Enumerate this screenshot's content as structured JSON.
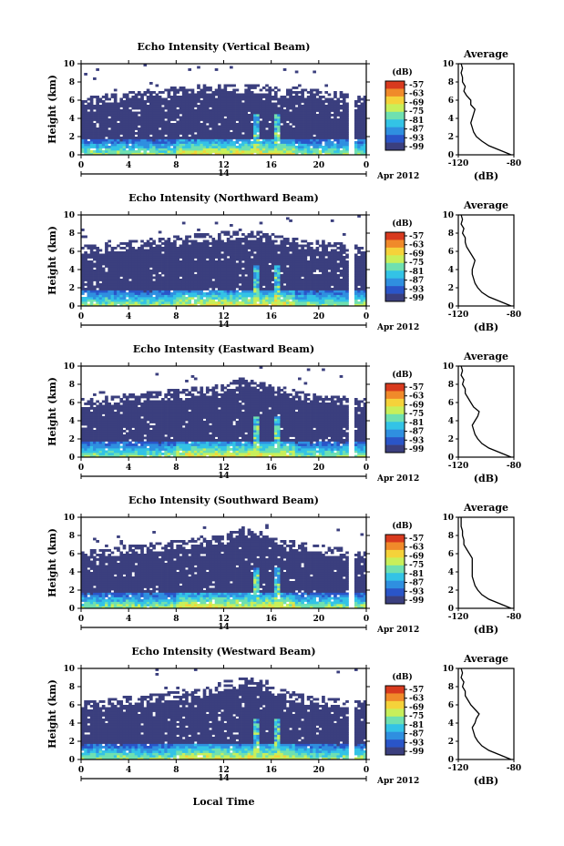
{
  "figure": {
    "xlabel": "Local Time",
    "date_label": "Apr 2012",
    "day_label": "14",
    "colorbar_unit": "(dB)",
    "profile_title": "Average",
    "profile_xlabel": "(dB)"
  },
  "colors": {
    "background_echo": "#3b3f7e",
    "colormap": [
      "#3b3f7e",
      "#2a55c8",
      "#2f8fe0",
      "#33c3e6",
      "#6fe0b0",
      "#c8ef5a",
      "#f5d23a",
      "#f08a2a",
      "#d83a1e"
    ]
  },
  "chart_data": [
    {
      "type": "heatmap",
      "title": "Echo Intensity (Vertical Beam)",
      "ylabel": "Height (km)",
      "xlabel": "Local Time",
      "xlim": [
        0,
        24
      ],
      "ylim": [
        0,
        10
      ],
      "x_ticks": [
        "0",
        "4",
        "8",
        "12",
        "16",
        "20",
        "0"
      ],
      "y_ticks": [
        "0",
        "2",
        "4",
        "6",
        "8",
        "10"
      ],
      "colorbar_ticks": [
        "-57",
        "-63",
        "-69",
        "-75",
        "-81",
        "-87",
        "-93",
        "-99"
      ],
      "echo_top_km": [
        6.0,
        6.2,
        6.4,
        6.6,
        6.8,
        7.0,
        7.2,
        7.4,
        7.5,
        7.4,
        7.3,
        7.2,
        7.0,
        6.8,
        6.6,
        6.4,
        6.0
      ],
      "bright_columns_hour": [
        14.8,
        16.6
      ],
      "profile": {
        "title": "Average",
        "xlabel": "(dB)",
        "xlim": [
          -120,
          -80
        ],
        "ylim": [
          0,
          10
        ],
        "x_ticks": [
          "-120",
          "-80"
        ],
        "y_ticks": [
          "0",
          "2",
          "4",
          "6",
          "8",
          "10"
        ],
        "height_km": [
          0,
          0.5,
          1,
          1.5,
          2,
          2.5,
          3,
          3.5,
          4,
          4.5,
          5,
          5.5,
          6,
          6.5,
          7,
          7.5,
          8,
          8.5,
          9,
          9.5,
          10
        ],
        "db": [
          -82,
          -90,
          -98,
          -103,
          -107,
          -109,
          -110,
          -111,
          -110,
          -109,
          -108,
          -111,
          -111,
          -114,
          -116,
          -115,
          -117,
          -117,
          -118,
          -117,
          -118
        ]
      }
    },
    {
      "type": "heatmap",
      "title": "Echo Intensity (Northward Beam)",
      "ylabel": "Height (km)",
      "xlabel": "Local Time",
      "xlim": [
        0,
        24
      ],
      "ylim": [
        0,
        10
      ],
      "x_ticks": [
        "0",
        "4",
        "8",
        "12",
        "16",
        "20",
        "0"
      ],
      "y_ticks": [
        "0",
        "2",
        "4",
        "6",
        "8",
        "10"
      ],
      "colorbar_ticks": [
        "-57",
        "-63",
        "-69",
        "-75",
        "-81",
        "-87",
        "-93",
        "-99"
      ],
      "echo_top_km": [
        6.2,
        6.4,
        6.6,
        6.8,
        7.0,
        7.2,
        7.4,
        7.6,
        7.8,
        8.0,
        7.8,
        7.4,
        7.0,
        6.8,
        6.6,
        6.4,
        6.0
      ],
      "bright_columns_hour": [
        14.8,
        16.6
      ],
      "profile": {
        "title": "Average",
        "xlabel": "(dB)",
        "xlim": [
          -120,
          -80
        ],
        "ylim": [
          0,
          10
        ],
        "x_ticks": [
          "-120",
          "-80"
        ],
        "y_ticks": [
          "0",
          "2",
          "4",
          "6",
          "8",
          "10"
        ],
        "height_km": [
          0,
          0.5,
          1,
          1.5,
          2,
          2.5,
          3,
          3.5,
          4,
          4.5,
          5,
          5.5,
          6,
          6.5,
          7,
          7.5,
          8,
          8.5,
          9,
          9.5,
          10
        ],
        "db": [
          -82,
          -90,
          -98,
          -103,
          -106,
          -108,
          -109,
          -110,
          -110,
          -109,
          -108,
          -110,
          -112,
          -114,
          -115,
          -115,
          -117,
          -116,
          -118,
          -117,
          -118
        ]
      }
    },
    {
      "type": "heatmap",
      "title": "Echo Intensity (Eastward Beam)",
      "ylabel": "Height (km)",
      "xlabel": "Local Time",
      "xlim": [
        0,
        24
      ],
      "ylim": [
        0,
        10
      ],
      "x_ticks": [
        "0",
        "4",
        "8",
        "12",
        "16",
        "20",
        "0"
      ],
      "y_ticks": [
        "0",
        "2",
        "4",
        "6",
        "8",
        "10"
      ],
      "colorbar_ticks": [
        "-57",
        "-63",
        "-69",
        "-75",
        "-81",
        "-87",
        "-93",
        "-99"
      ],
      "echo_top_km": [
        6.0,
        6.2,
        6.4,
        6.6,
        6.8,
        7.0,
        7.2,
        7.4,
        7.6,
        8.4,
        8.0,
        7.4,
        7.0,
        6.6,
        6.4,
        6.2,
        6.0
      ],
      "bright_columns_hour": [
        14.8,
        16.6
      ],
      "profile": {
        "title": "Average",
        "xlabel": "(dB)",
        "xlim": [
          -120,
          -80
        ],
        "ylim": [
          0,
          10
        ],
        "x_ticks": [
          "-120",
          "-80"
        ],
        "y_ticks": [
          "0",
          "2",
          "4",
          "6",
          "8",
          "10"
        ],
        "height_km": [
          0,
          0.5,
          1,
          1.5,
          2,
          2.5,
          3,
          3.5,
          4,
          4.5,
          5,
          5.5,
          6,
          6.5,
          7,
          7.5,
          8,
          8.5,
          9,
          9.5,
          10
        ],
        "db": [
          -82,
          -90,
          -98,
          -103,
          -106,
          -108,
          -109,
          -110,
          -108,
          -106,
          -105,
          -109,
          -111,
          -113,
          -115,
          -115,
          -117,
          -116,
          -118,
          -117,
          -118
        ]
      }
    },
    {
      "type": "heatmap",
      "title": "Echo Intensity (Southward Beam)",
      "ylabel": "Height (km)",
      "xlabel": "Local Time",
      "xlim": [
        0,
        24
      ],
      "ylim": [
        0,
        10
      ],
      "x_ticks": [
        "0",
        "4",
        "8",
        "12",
        "16",
        "20",
        "0"
      ],
      "y_ticks": [
        "0",
        "2",
        "4",
        "6",
        "8",
        "10"
      ],
      "colorbar_ticks": [
        "-57",
        "-63",
        "-69",
        "-75",
        "-81",
        "-87",
        "-93",
        "-99"
      ],
      "echo_top_km": [
        6.0,
        6.2,
        6.4,
        6.6,
        6.8,
        7.0,
        7.2,
        7.4,
        7.6,
        8.6,
        8.2,
        7.4,
        7.0,
        6.6,
        6.4,
        6.2,
        6.0
      ],
      "bright_columns_hour": [
        14.8,
        16.6
      ],
      "profile": {
        "title": "Average",
        "xlabel": "(dB)",
        "xlim": [
          -120,
          -80
        ],
        "ylim": [
          0,
          10
        ],
        "x_ticks": [
          "-120",
          "-80"
        ],
        "y_ticks": [
          "0",
          "2",
          "4",
          "6",
          "8",
          "10"
        ],
        "height_km": [
          0,
          0.5,
          1,
          1.5,
          2,
          2.5,
          3,
          3.5,
          4,
          4.5,
          5,
          5.5,
          6,
          6.5,
          7,
          7.5,
          8,
          8.5,
          9,
          9.5,
          10
        ],
        "db": [
          -82,
          -90,
          -98,
          -103,
          -106,
          -108,
          -109,
          -110,
          -110,
          -110,
          -110,
          -110,
          -112,
          -114,
          -116,
          -116,
          -117,
          -117,
          -118,
          -118,
          -118
        ]
      }
    },
    {
      "type": "heatmap",
      "title": "Echo Intensity (Westward Beam)",
      "ylabel": "Height (km)",
      "xlabel": "Local Time",
      "xlim": [
        0,
        24
      ],
      "ylim": [
        0,
        10
      ],
      "x_ticks": [
        "0",
        "4",
        "8",
        "12",
        "16",
        "20",
        "0"
      ],
      "y_ticks": [
        "0",
        "2",
        "4",
        "6",
        "8",
        "10"
      ],
      "colorbar_ticks": [
        "-57",
        "-63",
        "-69",
        "-75",
        "-81",
        "-87",
        "-93",
        "-99"
      ],
      "echo_top_km": [
        6.0,
        6.2,
        6.4,
        6.6,
        6.8,
        7.0,
        7.2,
        7.4,
        8.2,
        8.8,
        8.4,
        7.4,
        7.0,
        6.6,
        6.4,
        6.2,
        6.0
      ],
      "bright_columns_hour": [
        14.8,
        16.6
      ],
      "profile": {
        "title": "Average",
        "xlabel": "(dB)",
        "xlim": [
          -120,
          -80
        ],
        "ylim": [
          0,
          10
        ],
        "x_ticks": [
          "-120",
          "-80"
        ],
        "y_ticks": [
          "0",
          "2",
          "4",
          "6",
          "8",
          "10"
        ],
        "height_km": [
          0,
          0.5,
          1,
          1.5,
          2,
          2.5,
          3,
          3.5,
          4,
          4.5,
          5,
          5.5,
          6,
          6.5,
          7,
          7.5,
          8,
          8.5,
          9,
          9.5,
          10
        ],
        "db": [
          -82,
          -90,
          -98,
          -103,
          -106,
          -108,
          -109,
          -110,
          -108,
          -107,
          -105,
          -108,
          -111,
          -113,
          -115,
          -115,
          -117,
          -116,
          -118,
          -117,
          -118
        ]
      }
    }
  ]
}
